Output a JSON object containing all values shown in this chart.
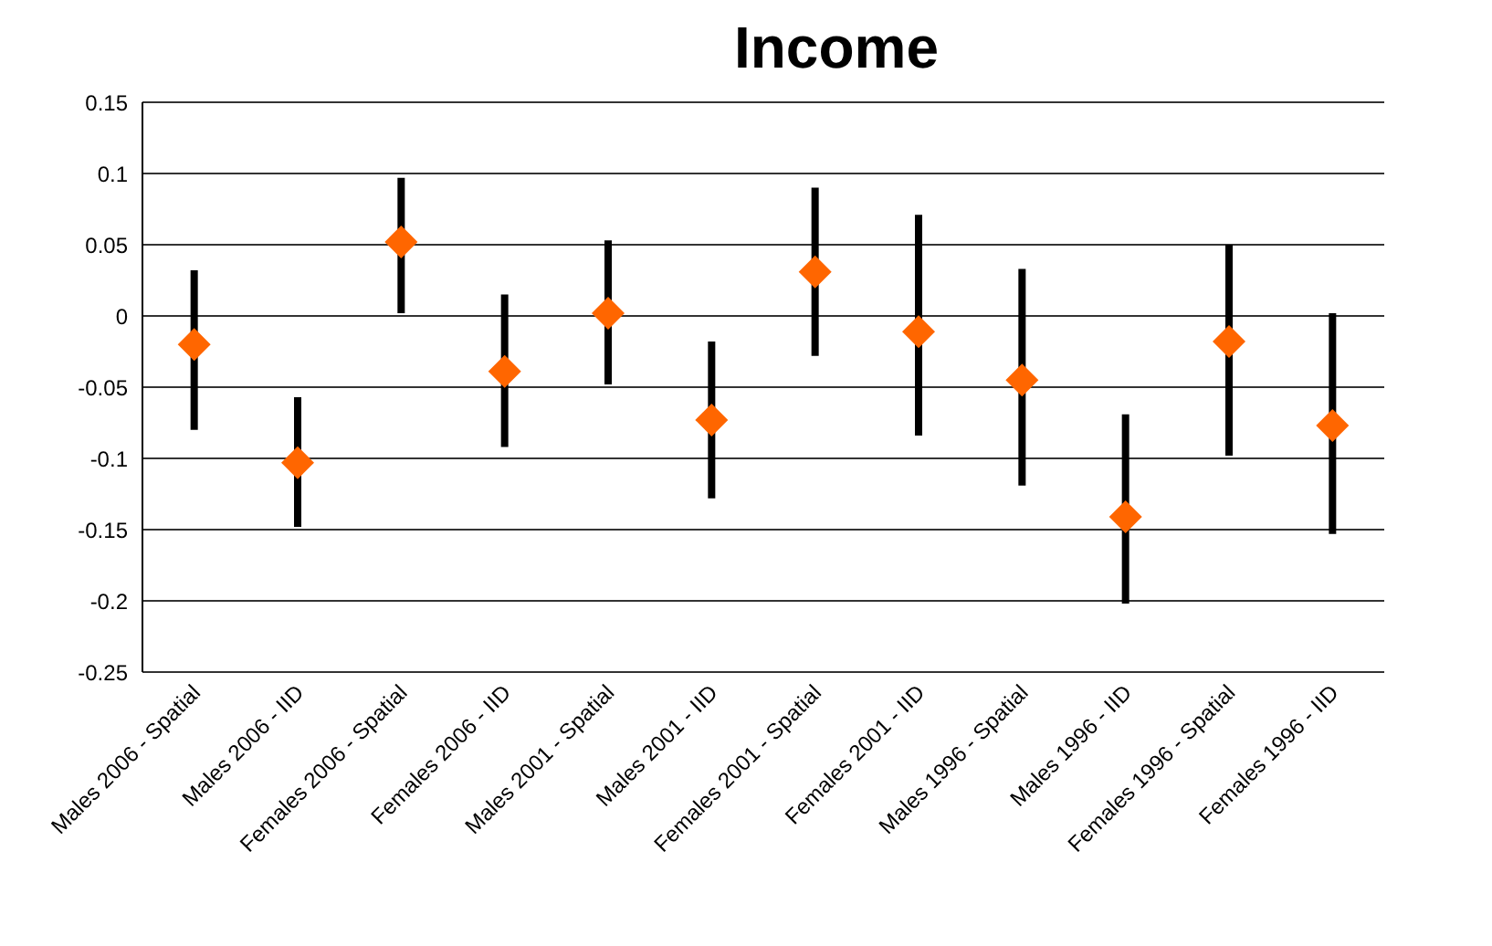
{
  "chart_data": {
    "type": "scatter",
    "title": "Income",
    "categories": [
      "Males 2006 - Spatial",
      "Males 2006 - IID",
      "Females 2006 - Spatial",
      "Females 2006 - IID",
      "Males 2001 - Spatial",
      "Males 2001 - IID",
      "Females 2001 - Spatial",
      "Females 2001 - IID",
      "Males 1996 - Spatial",
      "Males 1996 - IID",
      "Females 1996 - Spatial",
      "Females 1996 - IID"
    ],
    "values": [
      -0.02,
      -0.103,
      0.052,
      -0.039,
      0.002,
      -0.073,
      0.031,
      -0.011,
      -0.045,
      -0.141,
      -0.018,
      -0.077
    ],
    "errors": [
      [
        -0.08,
        0.032
      ],
      [
        -0.148,
        -0.057
      ],
      [
        0.002,
        0.097
      ],
      [
        -0.092,
        0.015
      ],
      [
        -0.048,
        0.053
      ],
      [
        -0.128,
        -0.018
      ],
      [
        -0.028,
        0.09
      ],
      [
        -0.084,
        0.071
      ],
      [
        -0.119,
        0.033
      ],
      [
        -0.202,
        -0.069
      ],
      [
        -0.098,
        0.05
      ],
      [
        -0.153,
        0.002
      ]
    ],
    "color": "#ff6600",
    "marker": "diamond",
    "ylim": [
      -0.25,
      0.15
    ],
    "yticks": [
      -0.25,
      -0.2,
      -0.15,
      -0.1,
      -0.05,
      0,
      0.05,
      0.1,
      0.15
    ],
    "grid": "y",
    "legend": false
  }
}
